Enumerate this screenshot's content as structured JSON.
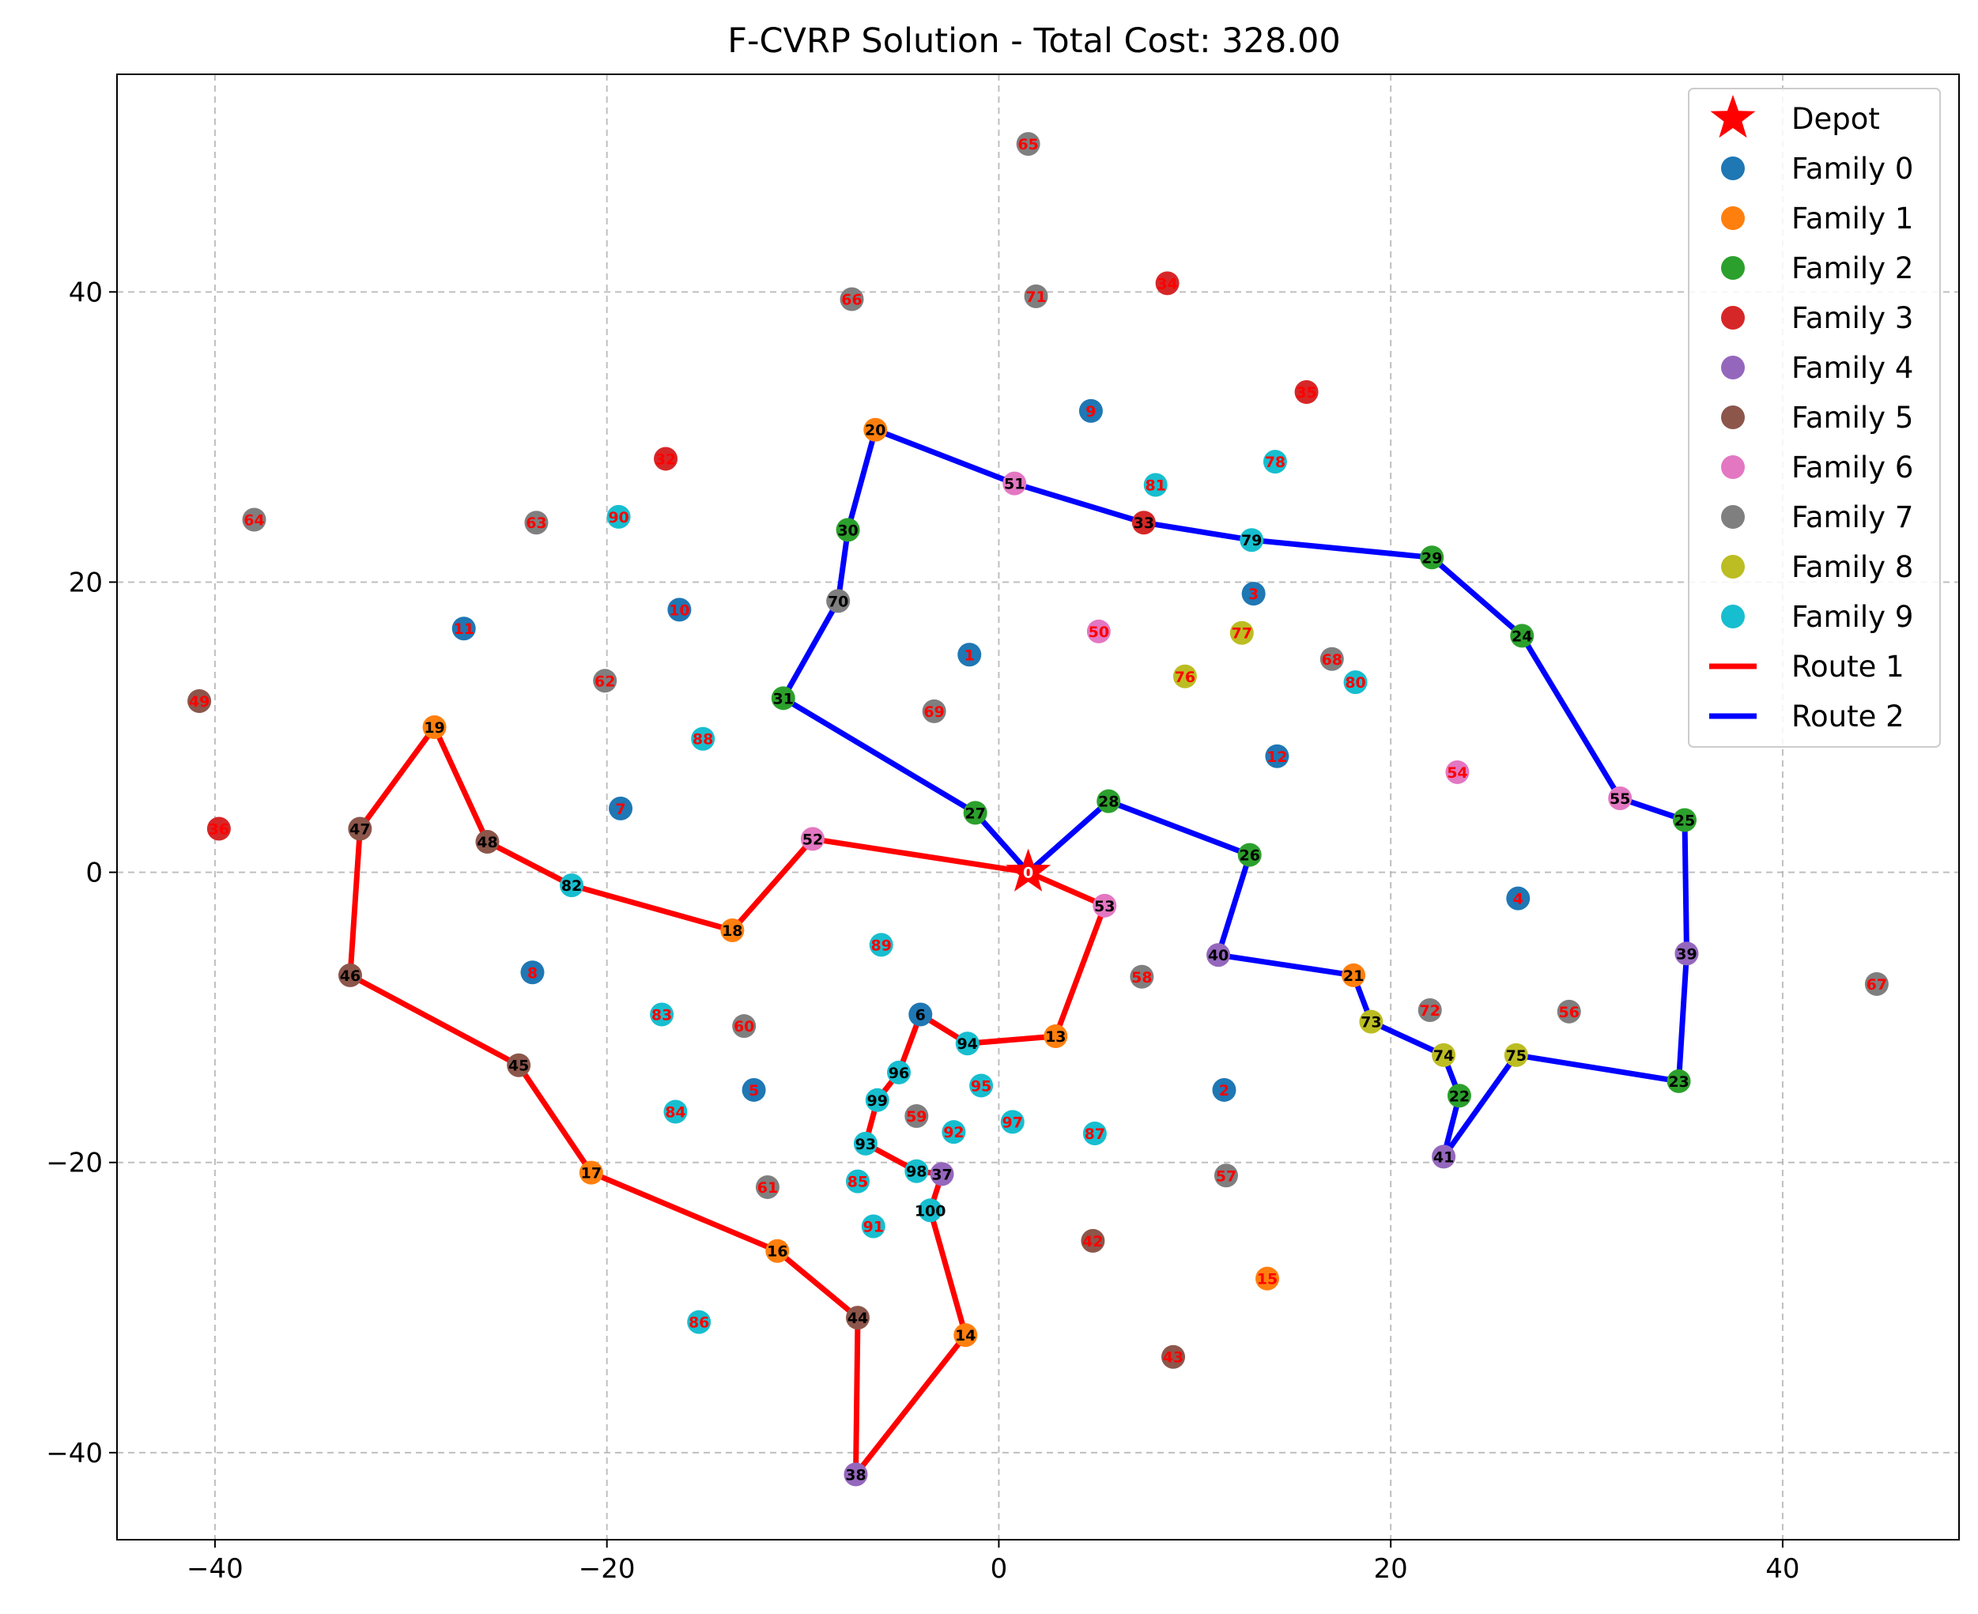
{
  "chart_data": {
    "type": "scatter",
    "title": "F-CVRP Solution - Total Cost: 328.00",
    "xlim": [
      -45,
      49
    ],
    "ylim": [
      -46,
      55
    ],
    "x_ticks": [
      -40,
      -20,
      0,
      20,
      40
    ],
    "y_ticks": [
      -40,
      -20,
      0,
      20,
      40
    ],
    "x_tick_labels": [
      "−40",
      "−20",
      "0",
      "20",
      "40"
    ],
    "y_tick_labels": [
      "−40",
      "−20",
      "0",
      "20",
      "40"
    ],
    "grid": true,
    "legend_placement": "top-right",
    "depot": {
      "label": "Depot",
      "node": "0",
      "x": 1.5,
      "y": 0,
      "color": "#ff0000"
    },
    "families": [
      {
        "name": "Family 0",
        "color": "#1f77b4"
      },
      {
        "name": "Family 1",
        "color": "#ff7f0e"
      },
      {
        "name": "Family 2",
        "color": "#2ca02c"
      },
      {
        "name": "Family 3",
        "color": "#d62728"
      },
      {
        "name": "Family 4",
        "color": "#9467bd"
      },
      {
        "name": "Family 5",
        "color": "#8c564b"
      },
      {
        "name": "Family 6",
        "color": "#e377c2"
      },
      {
        "name": "Family 7",
        "color": "#7f7f7f"
      },
      {
        "name": "Family 8",
        "color": "#bcbd22"
      },
      {
        "name": "Family 9",
        "color": "#17becf"
      }
    ],
    "routes": [
      {
        "name": "Route 1",
        "color": "#ff0000",
        "nodes": [
          "0",
          "53",
          "13",
          "94",
          "6",
          "96",
          "99",
          "93",
          "98",
          "37",
          "100",
          "14",
          "38",
          "44",
          "16",
          "17",
          "45",
          "46",
          "47",
          "19",
          "48",
          "82",
          "18",
          "52",
          "0"
        ]
      },
      {
        "name": "Route 2",
        "color": "#0000ff",
        "nodes": [
          "0",
          "27",
          "31",
          "70",
          "30",
          "20",
          "51",
          "33",
          "79",
          "29",
          "24",
          "55",
          "25",
          "39",
          "23",
          "75",
          "41",
          "22",
          "74",
          "73",
          "21",
          "40",
          "26",
          "28",
          "0"
        ]
      }
    ],
    "label_colors": {
      "visited": "#000000",
      "unvisited": "#ff0000"
    },
    "points": [
      {
        "id": "1",
        "x": -1.5,
        "y": 15,
        "family": 0
      },
      {
        "id": "2",
        "x": 11.5,
        "y": -15,
        "family": 0
      },
      {
        "id": "3",
        "x": 13,
        "y": 19.2,
        "family": 0
      },
      {
        "id": "4",
        "x": 26.5,
        "y": -1.8,
        "family": 0
      },
      {
        "id": "5",
        "x": -12.5,
        "y": -15,
        "family": 0
      },
      {
        "id": "6",
        "x": -4,
        "y": -9.8,
        "family": 0
      },
      {
        "id": "7",
        "x": -19.3,
        "y": 4.4,
        "family": 0
      },
      {
        "id": "8",
        "x": -23.8,
        "y": -6.9,
        "family": 0
      },
      {
        "id": "9",
        "x": 4.7,
        "y": 31.8,
        "family": 0
      },
      {
        "id": "10",
        "x": -16.3,
        "y": 18.1,
        "family": 0
      },
      {
        "id": "11",
        "x": -27.3,
        "y": 16.8,
        "family": 0
      },
      {
        "id": "12",
        "x": 14.2,
        "y": 8,
        "family": 0
      },
      {
        "id": "13",
        "x": 2.9,
        "y": -11.3,
        "family": 1
      },
      {
        "id": "14",
        "x": -1.7,
        "y": -31.9,
        "family": 1
      },
      {
        "id": "15",
        "x": 13.7,
        "y": -28,
        "family": 1
      },
      {
        "id": "16",
        "x": -11.3,
        "y": -26.1,
        "family": 1
      },
      {
        "id": "17",
        "x": -20.8,
        "y": -20.7,
        "family": 1
      },
      {
        "id": "18",
        "x": -13.6,
        "y": -4,
        "family": 1
      },
      {
        "id": "19",
        "x": -28.8,
        "y": 10,
        "family": 1
      },
      {
        "id": "20",
        "x": -6.3,
        "y": 30.5,
        "family": 1
      },
      {
        "id": "21",
        "x": 18.1,
        "y": -7.1,
        "family": 1
      },
      {
        "id": "22",
        "x": 23.5,
        "y": -15.4,
        "family": 2
      },
      {
        "id": "23",
        "x": 34.7,
        "y": -14.4,
        "family": 2
      },
      {
        "id": "24",
        "x": 26.7,
        "y": 16.3,
        "family": 2
      },
      {
        "id": "25",
        "x": 35,
        "y": 3.6,
        "family": 2
      },
      {
        "id": "26",
        "x": 12.8,
        "y": 1.2,
        "family": 2
      },
      {
        "id": "27",
        "x": -1.2,
        "y": 4.1,
        "family": 2
      },
      {
        "id": "28",
        "x": 5.6,
        "y": 4.9,
        "family": 2
      },
      {
        "id": "29",
        "x": 22.1,
        "y": 21.7,
        "family": 2
      },
      {
        "id": "30",
        "x": -7.7,
        "y": 23.6,
        "family": 2
      },
      {
        "id": "31",
        "x": -11,
        "y": 12,
        "family": 2
      },
      {
        "id": "32",
        "x": -17,
        "y": 28.5,
        "family": 3
      },
      {
        "id": "33",
        "x": 7.4,
        "y": 24.1,
        "family": 3
      },
      {
        "id": "34",
        "x": 8.6,
        "y": 40.6,
        "family": 3
      },
      {
        "id": "35",
        "x": 15.7,
        "y": 33.1,
        "family": 3
      },
      {
        "id": "36",
        "x": -39.8,
        "y": 3,
        "family": 3
      },
      {
        "id": "37",
        "x": -2.9,
        "y": -20.8,
        "family": 4
      },
      {
        "id": "38",
        "x": -7.3,
        "y": -41.5,
        "family": 4
      },
      {
        "id": "39",
        "x": 35.1,
        "y": -5.6,
        "family": 4
      },
      {
        "id": "40",
        "x": 11.2,
        "y": -5.7,
        "family": 4
      },
      {
        "id": "41",
        "x": 22.7,
        "y": -19.6,
        "family": 4
      },
      {
        "id": "42",
        "x": 4.8,
        "y": -25.4,
        "family": 5
      },
      {
        "id": "43",
        "x": 8.9,
        "y": -33.4,
        "family": 5
      },
      {
        "id": "44",
        "x": -7.2,
        "y": -30.7,
        "family": 5
      },
      {
        "id": "45",
        "x": -24.5,
        "y": -13.3,
        "family": 5
      },
      {
        "id": "46",
        "x": -33.1,
        "y": -7.1,
        "family": 5
      },
      {
        "id": "47",
        "x": -32.6,
        "y": 3,
        "family": 5
      },
      {
        "id": "48",
        "x": -26.1,
        "y": 2.1,
        "family": 5
      },
      {
        "id": "49",
        "x": -40.8,
        "y": 11.8,
        "family": 5
      },
      {
        "id": "50",
        "x": 5.1,
        "y": 16.6,
        "family": 6
      },
      {
        "id": "51",
        "x": 0.8,
        "y": 26.8,
        "family": 6
      },
      {
        "id": "52",
        "x": -9.5,
        "y": 2.3,
        "family": 6
      },
      {
        "id": "53",
        "x": 5.4,
        "y": -2.3,
        "family": 6
      },
      {
        "id": "54",
        "x": 23.4,
        "y": 6.9,
        "family": 6
      },
      {
        "id": "55",
        "x": 31.7,
        "y": 5.1,
        "family": 6
      },
      {
        "id": "56",
        "x": 29.1,
        "y": -9.6,
        "family": 7
      },
      {
        "id": "57",
        "x": 11.6,
        "y": -20.9,
        "family": 7
      },
      {
        "id": "58",
        "x": 7.3,
        "y": -7.2,
        "family": 7
      },
      {
        "id": "59",
        "x": -4.2,
        "y": -16.8,
        "family": 7
      },
      {
        "id": "60",
        "x": -13,
        "y": -10.6,
        "family": 7
      },
      {
        "id": "61",
        "x": -11.8,
        "y": -21.7,
        "family": 7
      },
      {
        "id": "62",
        "x": -20.1,
        "y": 13.2,
        "family": 7
      },
      {
        "id": "63",
        "x": -23.6,
        "y": 24.1,
        "family": 7
      },
      {
        "id": "64",
        "x": -38,
        "y": 24.3,
        "family": 7
      },
      {
        "id": "65",
        "x": 1.5,
        "y": 50.2,
        "family": 7
      },
      {
        "id": "66",
        "x": -7.5,
        "y": 39.5,
        "family": 7
      },
      {
        "id": "67",
        "x": 44.8,
        "y": -7.7,
        "family": 7
      },
      {
        "id": "68",
        "x": 17,
        "y": 14.7,
        "family": 7
      },
      {
        "id": "69",
        "x": -3.3,
        "y": 11.1,
        "family": 7
      },
      {
        "id": "70",
        "x": -8.2,
        "y": 18.7,
        "family": 7
      },
      {
        "id": "71",
        "x": 1.9,
        "y": 39.7,
        "family": 7
      },
      {
        "id": "72",
        "x": 22,
        "y": -9.5,
        "family": 7
      },
      {
        "id": "73",
        "x": 19,
        "y": -10.3,
        "family": 8
      },
      {
        "id": "74",
        "x": 22.7,
        "y": -12.6,
        "family": 8
      },
      {
        "id": "75",
        "x": 26.4,
        "y": -12.6,
        "family": 8
      },
      {
        "id": "76",
        "x": 9.5,
        "y": 13.5,
        "family": 8
      },
      {
        "id": "77",
        "x": 12.4,
        "y": 16.5,
        "family": 8
      },
      {
        "id": "78",
        "x": 14.1,
        "y": 28.3,
        "family": 9
      },
      {
        "id": "79",
        "x": 12.9,
        "y": 22.9,
        "family": 9
      },
      {
        "id": "80",
        "x": 18.2,
        "y": 13.1,
        "family": 9
      },
      {
        "id": "81",
        "x": 8,
        "y": 26.7,
        "family": 9
      },
      {
        "id": "82",
        "x": -21.8,
        "y": -0.9,
        "family": 9
      },
      {
        "id": "83",
        "x": -17.2,
        "y": -9.8,
        "family": 9
      },
      {
        "id": "84",
        "x": -16.5,
        "y": -16.5,
        "family": 9
      },
      {
        "id": "85",
        "x": -7.2,
        "y": -21.3,
        "family": 9
      },
      {
        "id": "86",
        "x": -15.3,
        "y": -31,
        "family": 9
      },
      {
        "id": "87",
        "x": 4.9,
        "y": -18,
        "family": 9
      },
      {
        "id": "88",
        "x": -15.1,
        "y": 9.2,
        "family": 9
      },
      {
        "id": "89",
        "x": -6,
        "y": -5,
        "family": 9
      },
      {
        "id": "90",
        "x": -19.4,
        "y": 24.5,
        "family": 9
      },
      {
        "id": "91",
        "x": -6.4,
        "y": -24.4,
        "family": 9
      },
      {
        "id": "92",
        "x": -2.3,
        "y": -17.9,
        "family": 9
      },
      {
        "id": "93",
        "x": -6.8,
        "y": -18.7,
        "family": 9
      },
      {
        "id": "94",
        "x": -1.6,
        "y": -11.8,
        "family": 9
      },
      {
        "id": "95",
        "x": -0.9,
        "y": -14.7,
        "family": 9
      },
      {
        "id": "96",
        "x": -5.1,
        "y": -13.8,
        "family": 9
      },
      {
        "id": "97",
        "x": 0.7,
        "y": -17.2,
        "family": 9
      },
      {
        "id": "98",
        "x": -4.2,
        "y": -20.6,
        "family": 9
      },
      {
        "id": "99",
        "x": -6.2,
        "y": -15.7,
        "family": 9
      },
      {
        "id": "100",
        "x": -3.5,
        "y": -23.3,
        "family": 9
      }
    ]
  }
}
